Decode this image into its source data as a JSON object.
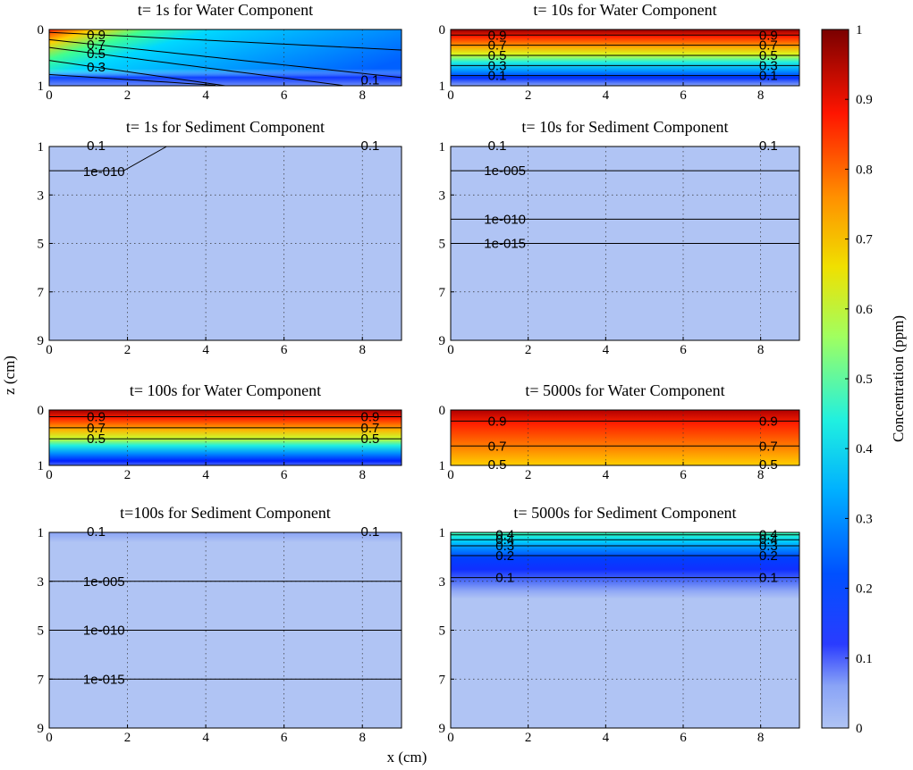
{
  "figure": {
    "ylabel": "z (cm)",
    "xlabel": "x (cm)",
    "colorbar": {
      "label": "Concentration (ppm)",
      "ticks": [
        "0",
        "0.1",
        "0.2",
        "0.3",
        "0.4",
        "0.5",
        "0.6",
        "0.7",
        "0.8",
        "0.9",
        "1"
      ],
      "range": [
        0,
        1
      ],
      "colormap": "jet"
    }
  },
  "chart_data": [
    {
      "type": "heatmap",
      "title": "t= 1s for Water Component",
      "xlim": [
        0,
        9
      ],
      "ylim": [
        0,
        1
      ],
      "xticks": [
        "0",
        "2",
        "4",
        "6",
        "8"
      ],
      "yticks": [
        "0",
        "1"
      ],
      "grid": true,
      "field": "slanted",
      "contours": [
        {
          "label": "0.9",
          "z_at_x0": 0.05,
          "slope": 0.035
        },
        {
          "label": "0.7",
          "z_at_x0": 0.18,
          "slope": 0.075
        },
        {
          "label": "0.5",
          "z_at_x0": 0.32,
          "slope": 0.09
        },
        {
          "label": "0.3",
          "z_at_x0": 0.55,
          "slope": 0.1
        },
        {
          "label": "0.1",
          "z_at_x0": 0.8,
          "slope": 0.045
        }
      ]
    },
    {
      "type": "heatmap",
      "title": "t= 10s for Water Component",
      "xlim": [
        0,
        9
      ],
      "ylim": [
        0,
        1
      ],
      "xticks": [
        "0",
        "2",
        "4",
        "6",
        "8"
      ],
      "yticks": [
        "0",
        "1"
      ],
      "grid": true,
      "field": "steep",
      "contours": [
        {
          "label": "0.9",
          "z": 0.1
        },
        {
          "label": "0.7",
          "z": 0.28
        },
        {
          "label": "0.5",
          "z": 0.46
        },
        {
          "label": "0.3",
          "z": 0.64
        },
        {
          "label": "0.1",
          "z": 0.82
        }
      ]
    },
    {
      "type": "heatmap",
      "title": "t= 1s for Sediment Component",
      "xlim": [
        0,
        9
      ],
      "ylim": [
        1,
        9
      ],
      "xticks": [
        "0",
        "2",
        "4",
        "6",
        "8"
      ],
      "yticks": [
        "1",
        "3",
        "5",
        "7",
        "9"
      ],
      "grid": true,
      "field": "zero",
      "contours": [
        {
          "label": "1e-010",
          "z": 2.0,
          "x_end": 1.9,
          "rise_to": 1.0,
          "rise_end_x": 3.0
        },
        {
          "label": "0.1",
          "z": 1.0,
          "partial": true
        }
      ]
    },
    {
      "type": "heatmap",
      "title": "t= 10s for Sediment Component",
      "xlim": [
        0,
        9
      ],
      "ylim": [
        1,
        9
      ],
      "xticks": [
        "0",
        "2",
        "4",
        "6",
        "8"
      ],
      "yticks": [
        "1",
        "3",
        "5",
        "7",
        "9"
      ],
      "grid": true,
      "field": "zero",
      "contours": [
        {
          "label": "0.1",
          "z": 1.0,
          "partial": true
        },
        {
          "label": "1e-005",
          "z": 2.0
        },
        {
          "label": "1e-010",
          "z": 4.0
        },
        {
          "label": "1e-015",
          "z": 5.0
        }
      ]
    },
    {
      "type": "heatmap",
      "title": "t= 100s for Water Component",
      "xlim": [
        0,
        9
      ],
      "ylim": [
        0,
        1
      ],
      "xticks": [
        "0",
        "2",
        "4",
        "6",
        "8"
      ],
      "yticks": [
        "0",
        "1"
      ],
      "grid": true,
      "field": "medium",
      "contours": [
        {
          "label": "0.9",
          "z": 0.12
        },
        {
          "label": "0.7",
          "z": 0.32
        },
        {
          "label": "0.5",
          "z": 0.52
        }
      ]
    },
    {
      "type": "heatmap",
      "title": "t= 5000s for Water Component",
      "xlim": [
        0,
        9
      ],
      "ylim": [
        0,
        1
      ],
      "xticks": [
        "0",
        "2",
        "4",
        "6",
        "8"
      ],
      "yticks": [
        "0",
        "1"
      ],
      "grid": true,
      "field": "warm",
      "contours": [
        {
          "label": "0.9",
          "z": 0.2
        },
        {
          "label": "0.7",
          "z": 0.65
        },
        {
          "label": "0.5",
          "z": 1.0,
          "partial": true
        }
      ]
    },
    {
      "type": "heatmap",
      "title": "t=100s for Sediment Component",
      "xlim": [
        0,
        9
      ],
      "ylim": [
        1,
        9
      ],
      "xticks": [
        "0",
        "2",
        "4",
        "6",
        "8"
      ],
      "yticks": [
        "1",
        "3",
        "5",
        "7",
        "9"
      ],
      "grid": true,
      "field": "thin",
      "contours": [
        {
          "label": "0.1",
          "z": 1.0,
          "partial": true
        },
        {
          "label": "1e-005",
          "z": 3.0
        },
        {
          "label": "1e-010",
          "z": 5.0
        },
        {
          "label": "1e-015",
          "z": 7.0
        }
      ]
    },
    {
      "type": "heatmap",
      "title": "t= 5000s for Sediment Component",
      "xlim": [
        0,
        9
      ],
      "ylim": [
        1,
        9
      ],
      "xticks": [
        "0",
        "2",
        "4",
        "6",
        "8"
      ],
      "yticks": [
        "1",
        "3",
        "5",
        "7",
        "9"
      ],
      "grid": true,
      "field": "sed5000",
      "contours": [
        {
          "label": "0.4",
          "z": 1.1
        },
        {
          "label": "0.4",
          "z": 1.3
        },
        {
          "label": "0.3",
          "z": 1.55
        },
        {
          "label": "0.2",
          "z": 1.95
        },
        {
          "label": "0.1",
          "z": 2.85
        }
      ]
    }
  ]
}
